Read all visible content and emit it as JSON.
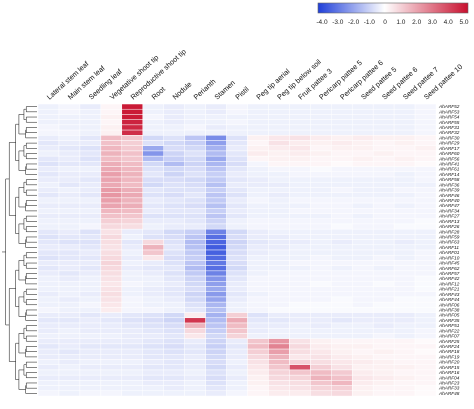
{
  "chart_data": {
    "type": "heatmap",
    "title": "",
    "xlabel": "",
    "ylabel": "",
    "color_scale": {
      "ticks": [
        "-4.0",
        "-3.0",
        "-2.0",
        "-1.0",
        "0",
        "1.0",
        "2.0",
        "3.0",
        "4.0",
        "5.0"
      ],
      "range": [
        -4.0,
        5.0
      ],
      "low_color": "#1f3fd9",
      "mid_color": "#ffffff",
      "high_color": "#c8102e"
    },
    "columns": [
      "Lateral stem leaf",
      "Main stem leaf",
      "Seedling leaf",
      "Vegetative shoot tip",
      "Reproductive shoot tip",
      "Root",
      "Nodule",
      "Perianth",
      "Stamen",
      "Pistil",
      "Peg tip aerial",
      "Peg tip below soil",
      "Fruit pattee 3",
      "Pericarp pattee 5",
      "Pericarp pattee 6",
      "Seed pattee 5",
      "Seed pattee 6",
      "Seed pattee 7",
      "Seed pattee 10"
    ],
    "rows": [
      "AhARF52",
      "AhARF53",
      "AhARF54",
      "AhARF55",
      "AhARF31",
      "AhARF32",
      "AhARF30",
      "AhARF29",
      "AhARF17",
      "AhARF60",
      "AhARF56",
      "AhARF41",
      "AhARF61",
      "AhARF14",
      "AhARF58",
      "AhARF36",
      "AhARF39",
      "AhARF46",
      "AhARF40",
      "AhARF47",
      "AhARF34",
      "AhARF27",
      "AhARF13",
      "AhARF26",
      "AhARF28",
      "AhARF59",
      "AhARF63",
      "AhARF11",
      "AhARF01",
      "AhARF10",
      "AhARF45",
      "AhARF62",
      "AhARF57",
      "AhARF42",
      "AhARF12",
      "AhARF21",
      "AhARF43",
      "AhARF44",
      "AhARF06",
      "AhARF38",
      "AhARF05",
      "AhARF35",
      "AhARF51",
      "AhARF22",
      "AhARF07",
      "AhARF25",
      "AhARF24",
      "AhARF18",
      "AhARF19",
      "AhARF20",
      "AhARF15",
      "AhARF16",
      "AhARF04",
      "AhARF23",
      "AhARF33",
      "AhARF48"
    ],
    "values": [
      [
        -0.3,
        -0.2,
        -0.4,
        0.2,
        4.8,
        -0.3,
        -0.4,
        -0.3,
        -0.4,
        -0.2,
        -0.3,
        -0.3,
        -0.3,
        -0.3,
        -0.3,
        -0.3,
        -0.3,
        -0.3,
        -0.2
      ],
      [
        -0.3,
        -0.2,
        -0.3,
        0.2,
        4.8,
        -0.3,
        -0.4,
        -0.3,
        -0.4,
        -0.2,
        -0.3,
        -0.3,
        -0.3,
        -0.3,
        -0.3,
        -0.3,
        -0.3,
        -0.3,
        -0.2
      ],
      [
        -0.3,
        -0.3,
        -0.3,
        0.3,
        4.8,
        -0.2,
        -0.4,
        -0.3,
        -0.3,
        -0.3,
        -0.3,
        -0.3,
        -0.3,
        -0.3,
        -0.3,
        -0.3,
        -0.3,
        -0.3,
        -0.2
      ],
      [
        -0.3,
        -0.3,
        -0.3,
        0.2,
        4.6,
        -0.3,
        -0.4,
        -0.3,
        -0.3,
        -0.2,
        -0.3,
        -0.3,
        -0.3,
        -0.3,
        -0.3,
        -0.3,
        -0.3,
        -0.3,
        -0.2
      ],
      [
        -0.2,
        -0.3,
        -0.3,
        0.3,
        4.5,
        -0.3,
        -0.3,
        -0.2,
        -0.4,
        -0.3,
        -0.3,
        -0.3,
        -0.3,
        -0.3,
        -0.3,
        -0.3,
        -0.3,
        -0.3,
        -0.2
      ],
      [
        -0.2,
        -0.2,
        -0.3,
        0.3,
        4.4,
        -0.3,
        -0.3,
        -0.3,
        -0.3,
        -0.3,
        -0.3,
        -0.3,
        -0.3,
        -0.3,
        -0.3,
        -0.3,
        -0.3,
        -0.3,
        -0.2
      ],
      [
        -0.4,
        -0.3,
        -0.5,
        1.4,
        1.2,
        -0.8,
        -0.6,
        -1.2,
        -2.4,
        -0.6,
        0.3,
        0.5,
        0.6,
        0.4,
        0.3,
        0.4,
        0.3,
        0.3,
        0.2
      ],
      [
        -0.5,
        -0.4,
        -0.4,
        1.3,
        1.0,
        -0.6,
        -0.8,
        -1.0,
        -2.0,
        -0.5,
        0.2,
        0.6,
        0.4,
        0.3,
        0.4,
        0.3,
        0.2,
        0.3,
        0.2
      ],
      [
        -0.4,
        -0.5,
        -0.6,
        1.5,
        1.1,
        -1.8,
        -0.7,
        -0.8,
        -1.6,
        -0.4,
        0.3,
        0.4,
        0.5,
        0.2,
        0.3,
        0.3,
        0.2,
        0.2,
        0.3
      ],
      [
        -0.3,
        -0.4,
        -0.5,
        1.6,
        1.3,
        -2.2,
        -0.9,
        -0.6,
        -1.4,
        -0.5,
        0.4,
        0.3,
        0.4,
        0.3,
        0.2,
        0.2,
        0.3,
        0.2,
        0.2
      ],
      [
        -0.5,
        -0.4,
        -0.6,
        1.4,
        1.2,
        -1.4,
        -1.0,
        -0.8,
        -1.8,
        -0.6,
        0.2,
        0.3,
        0.3,
        0.2,
        0.2,
        0.3,
        0.2,
        0.3,
        0.2
      ],
      [
        -0.6,
        -0.5,
        -0.5,
        1.7,
        1.4,
        -0.8,
        -1.4,
        -0.9,
        -1.5,
        -0.7,
        -0.2,
        0.2,
        0.2,
        0.2,
        0.1,
        0.2,
        0.2,
        0.2,
        0.1
      ],
      [
        -0.4,
        -0.3,
        -0.3,
        1.8,
        1.5,
        -0.6,
        -0.8,
        -0.7,
        -1.2,
        -0.5,
        -0.3,
        -0.2,
        -0.2,
        -0.1,
        -0.2,
        -0.2,
        -0.2,
        -0.2,
        -0.2
      ],
      [
        -0.5,
        -0.4,
        -0.4,
        2.0,
        1.6,
        -0.5,
        -0.9,
        -0.6,
        -1.0,
        -0.4,
        -0.3,
        -0.3,
        -0.2,
        -0.2,
        -0.2,
        -0.2,
        -0.2,
        -0.3,
        -0.2
      ],
      [
        -0.4,
        -0.4,
        -0.5,
        1.9,
        1.5,
        -0.7,
        -0.7,
        -0.8,
        -1.1,
        -0.5,
        -0.4,
        -0.3,
        -0.3,
        -0.3,
        -0.3,
        -0.3,
        -0.3,
        -0.3,
        -0.2
      ],
      [
        -0.3,
        -0.5,
        -0.4,
        1.8,
        1.4,
        -0.8,
        -0.6,
        -0.7,
        -1.3,
        -0.4,
        -0.4,
        -0.4,
        -0.3,
        -0.3,
        -0.3,
        -0.3,
        -0.3,
        -0.3,
        -0.3
      ],
      [
        -0.4,
        -0.3,
        -0.4,
        2.1,
        1.7,
        -0.5,
        -0.6,
        -0.6,
        -1.0,
        -0.5,
        -0.3,
        -0.3,
        -0.3,
        -0.3,
        -0.2,
        -0.3,
        -0.3,
        -0.2,
        -0.2
      ],
      [
        -0.5,
        -0.4,
        -0.5,
        2.2,
        1.8,
        -0.6,
        -0.7,
        -0.5,
        -1.2,
        -0.6,
        -0.3,
        -0.4,
        -0.3,
        -0.3,
        -0.3,
        -0.3,
        -0.3,
        -0.3,
        -0.2
      ],
      [
        -0.3,
        -0.3,
        -0.3,
        2.0,
        1.6,
        -0.4,
        -0.5,
        -0.6,
        -1.1,
        -0.4,
        -0.2,
        -0.3,
        -0.2,
        -0.2,
        -0.2,
        -0.2,
        -0.2,
        -0.2,
        -0.2
      ],
      [
        -0.4,
        -0.4,
        -0.4,
        1.9,
        1.7,
        -0.5,
        -0.6,
        -0.7,
        -1.3,
        -0.5,
        -0.3,
        -0.3,
        -0.3,
        -0.2,
        -0.2,
        -0.3,
        -0.2,
        -0.3,
        -0.2
      ],
      [
        -0.3,
        -0.3,
        -0.3,
        1.5,
        1.4,
        -0.4,
        -0.5,
        -0.5,
        -1.0,
        -0.4,
        -0.3,
        -0.3,
        -0.2,
        -0.2,
        -0.2,
        -0.2,
        -0.2,
        -0.2,
        -0.2
      ],
      [
        -0.4,
        -0.4,
        -0.4,
        1.3,
        1.2,
        -0.6,
        -0.6,
        -0.6,
        -1.2,
        -0.5,
        -0.3,
        -0.3,
        -0.3,
        -0.3,
        -0.2,
        -0.3,
        -0.2,
        -0.2,
        -0.2
      ],
      [
        -0.3,
        -0.3,
        -0.3,
        1.0,
        0.9,
        -0.4,
        -0.4,
        -0.5,
        -0.9,
        -0.3,
        -0.2,
        -0.2,
        -0.2,
        -0.2,
        -0.2,
        -0.2,
        -0.2,
        -0.2,
        -0.1
      ],
      [
        -0.3,
        -0.3,
        -0.2,
        0.8,
        0.7,
        -0.3,
        -0.4,
        -0.4,
        -0.8,
        -0.3,
        -0.2,
        -0.2,
        -0.2,
        -0.2,
        -0.1,
        -0.2,
        -0.2,
        -0.1,
        -0.1
      ],
      [
        -0.5,
        -0.4,
        -0.6,
        0.6,
        -0.4,
        -0.5,
        -0.8,
        -1.0,
        -2.6,
        -0.8,
        -0.4,
        -0.3,
        -0.3,
        -0.3,
        -0.3,
        -0.3,
        -0.3,
        -0.3,
        -0.3
      ],
      [
        -0.6,
        -0.5,
        -0.5,
        0.8,
        -0.3,
        -0.6,
        -0.7,
        -1.2,
        -3.0,
        -0.7,
        -0.4,
        -0.4,
        -0.3,
        -0.3,
        -0.3,
        -0.3,
        -0.3,
        -0.3,
        -0.3
      ],
      [
        -0.5,
        -0.6,
        -0.6,
        0.7,
        -0.5,
        0.8,
        -0.6,
        -1.4,
        -3.2,
        -0.9,
        -0.5,
        -0.4,
        -0.4,
        -0.3,
        -0.4,
        -0.3,
        -0.3,
        -0.4,
        -0.3
      ],
      [
        -0.4,
        -0.4,
        -0.5,
        0.6,
        -0.4,
        1.6,
        -0.5,
        -1.3,
        -3.4,
        -0.8,
        -0.4,
        -0.4,
        -0.3,
        -0.3,
        -0.3,
        -0.3,
        -0.3,
        -0.3,
        -0.3
      ],
      [
        -0.5,
        -0.5,
        -0.4,
        0.7,
        -0.3,
        1.2,
        -0.6,
        -1.1,
        -3.3,
        -0.7,
        -0.4,
        -0.3,
        -0.3,
        -0.3,
        -0.3,
        -0.3,
        -0.3,
        -0.3,
        -0.2
      ],
      [
        -0.6,
        -0.5,
        -0.5,
        0.8,
        -0.4,
        0.5,
        -0.7,
        -1.0,
        -3.1,
        -0.6,
        -0.3,
        -0.3,
        -0.3,
        -0.2,
        -0.3,
        -0.3,
        -0.2,
        -0.3,
        -0.2
      ],
      [
        -0.4,
        -0.4,
        -0.4,
        0.9,
        -0.3,
        -0.4,
        -0.6,
        -1.2,
        -2.8,
        -0.7,
        -0.3,
        -0.3,
        -0.2,
        -0.2,
        -0.2,
        -0.2,
        -0.2,
        -0.2,
        -0.2
      ],
      [
        -0.5,
        -0.4,
        -0.5,
        0.8,
        -0.4,
        -0.5,
        -0.5,
        -1.4,
        -3.0,
        -0.8,
        -0.3,
        -0.3,
        -0.3,
        -0.2,
        -0.3,
        -0.2,
        -0.3,
        -0.2,
        -0.2
      ],
      [
        -0.4,
        -0.5,
        -0.4,
        0.7,
        -0.3,
        -0.4,
        -0.6,
        -1.1,
        -2.6,
        -0.6,
        -0.3,
        -0.2,
        -0.2,
        -0.2,
        -0.2,
        -0.2,
        -0.2,
        -0.2,
        -0.2
      ],
      [
        -0.3,
        -0.4,
        -0.3,
        0.6,
        -0.3,
        -0.3,
        -0.5,
        -0.9,
        -2.2,
        -0.5,
        -0.2,
        -0.2,
        -0.2,
        -0.2,
        -0.2,
        -0.2,
        -0.2,
        -0.2,
        -0.1
      ],
      [
        -0.3,
        -0.3,
        -0.3,
        0.5,
        -0.2,
        -0.3,
        -0.4,
        -0.8,
        -2.0,
        -0.4,
        -0.2,
        -0.2,
        -0.2,
        -0.1,
        -0.2,
        -0.2,
        -0.1,
        -0.2,
        -0.1
      ],
      [
        -0.3,
        -0.3,
        -0.3,
        0.6,
        -0.3,
        -0.4,
        -0.5,
        -0.7,
        -1.8,
        -0.4,
        -0.2,
        -0.2,
        -0.2,
        -0.2,
        -0.2,
        -0.2,
        -0.2,
        -0.2,
        -0.1
      ],
      [
        -0.4,
        -0.3,
        -0.4,
        0.7,
        -0.3,
        -0.4,
        -0.5,
        -0.9,
        -2.1,
        -0.5,
        -0.3,
        -0.2,
        -0.2,
        -0.2,
        -0.2,
        -0.2,
        -0.2,
        -0.2,
        -0.2
      ],
      [
        -0.3,
        -0.4,
        -0.3,
        0.6,
        -0.2,
        -0.3,
        -0.4,
        -0.8,
        -1.9,
        -0.4,
        -0.2,
        -0.2,
        -0.2,
        -0.2,
        -0.1,
        -0.2,
        -0.2,
        -0.1,
        -0.1
      ],
      [
        -0.3,
        -0.3,
        -0.2,
        0.5,
        -0.2,
        -0.3,
        -0.3,
        -0.6,
        -1.5,
        -0.3,
        -0.2,
        -0.2,
        -0.1,
        -0.1,
        -0.1,
        -0.2,
        -0.1,
        -0.1,
        -0.1
      ],
      [
        -0.2,
        -0.3,
        -0.3,
        0.4,
        -0.2,
        -0.2,
        -0.3,
        -0.5,
        -1.3,
        -0.3,
        -0.2,
        -0.1,
        -0.1,
        -0.1,
        -0.1,
        -0.1,
        -0.1,
        -0.1,
        -0.1
      ],
      [
        -0.4,
        -0.4,
        -0.5,
        -0.4,
        -0.5,
        -0.6,
        -0.8,
        0.4,
        -1.6,
        1.0,
        -0.6,
        -0.4,
        -0.4,
        -0.4,
        -0.4,
        -0.4,
        -0.4,
        -0.4,
        -0.3
      ],
      [
        -0.5,
        -0.5,
        -0.4,
        -0.5,
        -0.6,
        -0.7,
        -0.9,
        4.2,
        -1.4,
        1.8,
        -0.5,
        -0.5,
        -0.4,
        -0.4,
        -0.5,
        -0.4,
        -0.4,
        -0.4,
        -0.3
      ],
      [
        -0.4,
        -0.4,
        -0.4,
        -0.4,
        -0.5,
        -0.6,
        -0.7,
        1.6,
        -1.2,
        1.4,
        -0.4,
        -0.4,
        -0.3,
        -0.4,
        -0.3,
        -0.3,
        -0.4,
        -0.3,
        -0.3
      ],
      [
        -0.4,
        -0.3,
        -0.4,
        -0.4,
        -0.4,
        -0.5,
        -0.6,
        0.8,
        -1.0,
        1.2,
        -0.4,
        -0.3,
        -0.3,
        -0.3,
        -0.3,
        -0.3,
        -0.3,
        -0.3,
        -0.2
      ],
      [
        -0.3,
        -0.3,
        -0.3,
        -0.3,
        -0.4,
        -0.4,
        -0.5,
        0.5,
        -0.8,
        0.9,
        -0.3,
        -0.3,
        -0.3,
        -0.3,
        -0.3,
        -0.3,
        -0.2,
        -0.3,
        -0.2
      ],
      [
        -0.4,
        -0.4,
        -0.4,
        -0.4,
        -0.4,
        -0.5,
        -0.6,
        -0.4,
        -0.9,
        -0.4,
        1.2,
        2.2,
        0.6,
        0.3,
        0.2,
        0.2,
        0.2,
        0.2,
        0.1
      ],
      [
        -0.5,
        -0.4,
        -0.5,
        -0.5,
        -0.5,
        -0.6,
        -0.7,
        -0.5,
        -1.0,
        -0.5,
        1.4,
        2.6,
        0.8,
        0.4,
        0.3,
        0.3,
        0.2,
        0.2,
        0.2
      ],
      [
        -0.4,
        -0.5,
        -0.4,
        -0.4,
        -0.4,
        -0.5,
        -0.6,
        -0.5,
        -0.9,
        -0.4,
        1.0,
        2.0,
        0.7,
        0.5,
        0.3,
        0.2,
        0.3,
        0.2,
        0.1
      ],
      [
        -0.4,
        -0.4,
        -0.4,
        -0.4,
        -0.4,
        -0.5,
        -0.5,
        -0.4,
        -0.8,
        -0.4,
        0.8,
        1.6,
        0.5,
        0.6,
        0.4,
        0.3,
        0.2,
        0.2,
        0.2
      ],
      [
        -0.3,
        -0.4,
        -0.3,
        -0.3,
        -0.3,
        -0.4,
        -0.5,
        -0.4,
        -0.7,
        -0.3,
        0.6,
        1.4,
        0.9,
        0.7,
        0.5,
        0.4,
        0.3,
        0.2,
        0.2
      ],
      [
        -0.4,
        -0.3,
        -0.4,
        -0.4,
        -0.4,
        -0.5,
        -0.5,
        -0.4,
        -0.8,
        -0.4,
        0.5,
        1.2,
        3.6,
        1.0,
        0.6,
        0.3,
        0.3,
        0.3,
        0.2
      ],
      [
        -0.3,
        -0.3,
        -0.3,
        -0.3,
        -0.3,
        -0.4,
        -0.4,
        -0.3,
        -0.6,
        -0.3,
        0.4,
        0.9,
        1.2,
        1.4,
        1.1,
        0.4,
        0.3,
        0.2,
        0.2
      ],
      [
        -0.4,
        -0.4,
        -0.4,
        -0.4,
        -0.4,
        -0.5,
        -0.5,
        -0.4,
        -0.7,
        -0.4,
        0.3,
        0.8,
        0.9,
        1.6,
        1.3,
        0.5,
        0.4,
        0.3,
        0.2
      ],
      [
        -0.3,
        -0.3,
        -0.3,
        -0.3,
        -0.3,
        -0.4,
        -0.4,
        -0.3,
        -0.6,
        -0.3,
        0.3,
        0.6,
        0.7,
        1.2,
        1.5,
        0.4,
        0.3,
        0.2,
        0.2
      ],
      [
        -0.3,
        -0.3,
        -0.3,
        -0.3,
        -0.3,
        -0.3,
        -0.4,
        -0.3,
        -0.5,
        -0.3,
        0.2,
        0.5,
        0.6,
        0.9,
        1.0,
        0.3,
        0.2,
        0.2,
        0.1
      ],
      [
        -0.2,
        -0.3,
        -0.2,
        -0.2,
        -0.3,
        -0.3,
        -0.3,
        -0.3,
        -0.4,
        -0.2,
        0.2,
        0.4,
        0.4,
        0.7,
        0.8,
        0.3,
        0.2,
        0.2,
        0.1
      ]
    ],
    "grid": true,
    "legend_position": "top-right"
  }
}
